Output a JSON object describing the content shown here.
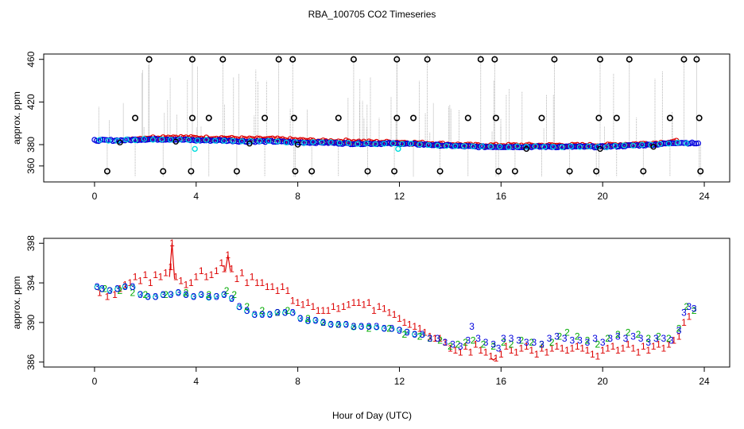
{
  "title": "RBA_100705  CO2 Timeseries",
  "xlabel": "Hour of Day (UTC)",
  "chart_data": [
    {
      "type": "scatter",
      "ylabel": "approx. ppm",
      "xlim": [
        -2,
        25
      ],
      "ylim": [
        345,
        465
      ],
      "xticks": [
        0,
        4,
        8,
        12,
        16,
        20,
        24
      ],
      "yticks": [
        360,
        380,
        420,
        460
      ],
      "colors": {
        "gray": "#a0a0a0",
        "red": "#dd0000",
        "blue": "#0000dd",
        "cyan": "#00dddd",
        "black": "#000000"
      },
      "baseline": [
        [
          0,
          384
        ],
        [
          1,
          384
        ],
        [
          2,
          385
        ],
        [
          3,
          385
        ],
        [
          4,
          384
        ],
        [
          5,
          384
        ],
        [
          6,
          383
        ],
        [
          7,
          383
        ],
        [
          8,
          382
        ],
        [
          9,
          382
        ],
        [
          10,
          381
        ],
        [
          11,
          381
        ],
        [
          12,
          381
        ],
        [
          13,
          380
        ],
        [
          14,
          379
        ],
        [
          15,
          378
        ],
        [
          16,
          378
        ],
        [
          17,
          378
        ],
        [
          18,
          378
        ],
        [
          19,
          378
        ],
        [
          20,
          378
        ],
        [
          21,
          379
        ],
        [
          22,
          380
        ],
        [
          23,
          382
        ],
        [
          23.8,
          381
        ]
      ],
      "red_baseline": [
        [
          1.5,
          385
        ],
        [
          2,
          386
        ],
        [
          3,
          387
        ],
        [
          4,
          386
        ],
        [
          5,
          386
        ],
        [
          6,
          385
        ],
        [
          7,
          385
        ],
        [
          8,
          384
        ],
        [
          9,
          383
        ],
        [
          10,
          383
        ],
        [
          11,
          382
        ],
        [
          12,
          382
        ],
        [
          13,
          381
        ],
        [
          14,
          380
        ],
        [
          15,
          379
        ],
        [
          16,
          379
        ],
        [
          17,
          379
        ],
        [
          18,
          379
        ],
        [
          19,
          379
        ],
        [
          20,
          379
        ],
        [
          21,
          380
        ],
        [
          22,
          381
        ],
        [
          23,
          383
        ]
      ],
      "outliers_high": [
        2.15,
        3.85,
        5.05,
        7.25,
        7.8,
        10.2,
        11.9,
        13.1,
        15.2,
        15.75,
        18.1,
        19.9,
        21.05,
        23.2,
        23.7
      ],
      "outliers_mid": [
        1.6,
        3.85,
        4.5,
        6.7,
        7.85,
        9.6,
        11.9,
        12.55,
        14.7,
        15.8,
        17.6,
        19.85,
        20.55,
        22.65,
        23.8
      ],
      "outliers_low": [
        0.5,
        2.7,
        3.8,
        5.6,
        7.9,
        8.55,
        10.75,
        11.8,
        13.6,
        15.9,
        16.55,
        18.7,
        19.75,
        21.6,
        23.85
      ]
    },
    {
      "type": "scatter",
      "ylabel": "approx. ppm",
      "xlim": [
        -2,
        25
      ],
      "ylim": [
        385.5,
        398.5
      ],
      "xticks": [
        0,
        4,
        8,
        12,
        16,
        20,
        24
      ],
      "yticks": [
        386,
        390,
        394,
        398
      ],
      "series_labels": [
        "1",
        "2",
        "3"
      ],
      "colors": {
        "s1": "#dd0000",
        "s2": "#00aa00",
        "s3": "#0000dd",
        "cyan": "#00bbbb"
      },
      "series_1": [
        [
          0.2,
          393
        ],
        [
          0.5,
          392.6
        ],
        [
          0.8,
          392.8
        ],
        [
          1.0,
          393.4
        ],
        [
          1.2,
          393.8
        ],
        [
          1.4,
          394
        ],
        [
          1.6,
          394.6
        ],
        [
          1.8,
          394.2
        ],
        [
          2.0,
          394.8
        ],
        [
          2.2,
          394
        ],
        [
          2.4,
          394.8
        ],
        [
          2.6,
          394.6
        ],
        [
          2.8,
          395
        ],
        [
          3.0,
          395.6
        ],
        [
          3.05,
          398
        ],
        [
          3.2,
          394.6
        ],
        [
          3.4,
          394.2
        ],
        [
          3.6,
          393.8
        ],
        [
          3.8,
          394
        ],
        [
          4.0,
          394.6
        ],
        [
          4.2,
          395.2
        ],
        [
          4.4,
          394.6
        ],
        [
          4.6,
          394.8
        ],
        [
          4.8,
          395.2
        ],
        [
          5.0,
          396
        ],
        [
          5.1,
          395.4
        ],
        [
          5.25,
          396.8
        ],
        [
          5.4,
          395.4
        ],
        [
          5.6,
          394.4
        ],
        [
          5.8,
          395
        ],
        [
          6.0,
          394
        ],
        [
          6.2,
          394.6
        ],
        [
          6.4,
          394
        ],
        [
          6.6,
          394
        ],
        [
          6.8,
          393.6
        ],
        [
          7.0,
          393.6
        ],
        [
          7.2,
          393.2
        ],
        [
          7.4,
          393.6
        ],
        [
          7.6,
          393.2
        ],
        [
          7.8,
          392.2
        ],
        [
          8.0,
          392
        ],
        [
          8.2,
          391.8
        ],
        [
          8.4,
          392
        ],
        [
          8.6,
          391.6
        ],
        [
          8.8,
          391.2
        ],
        [
          9.0,
          391.2
        ],
        [
          9.2,
          391.2
        ],
        [
          9.4,
          391.6
        ],
        [
          9.6,
          391.4
        ],
        [
          9.8,
          391.6
        ],
        [
          10.0,
          391.8
        ],
        [
          10.2,
          392
        ],
        [
          10.4,
          392
        ],
        [
          10.6,
          391.8
        ],
        [
          10.8,
          392
        ],
        [
          11.0,
          391.2
        ],
        [
          11.2,
          391.6
        ],
        [
          11.4,
          391.4
        ],
        [
          11.6,
          391
        ],
        [
          11.8,
          390.8
        ],
        [
          12.0,
          390.4
        ],
        [
          12.2,
          390
        ],
        [
          12.4,
          389.8
        ],
        [
          12.6,
          389.6
        ],
        [
          12.8,
          389.4
        ],
        [
          13.0,
          389
        ],
        [
          13.2,
          388.6
        ],
        [
          13.4,
          388.4
        ],
        [
          13.6,
          388.4
        ],
        [
          13.8,
          388
        ],
        [
          14.0,
          387.4
        ],
        [
          14.2,
          387.2
        ],
        [
          14.4,
          387
        ],
        [
          14.6,
          387.6
        ],
        [
          14.8,
          387
        ],
        [
          15.0,
          387.8
        ],
        [
          15.2,
          387.2
        ],
        [
          15.4,
          387
        ],
        [
          15.6,
          386.6
        ],
        [
          15.8,
          386.4
        ],
        [
          16.0,
          386.8
        ],
        [
          16.2,
          387.6
        ],
        [
          16.4,
          387.2
        ],
        [
          16.6,
          387
        ],
        [
          16.8,
          387.4
        ],
        [
          17.0,
          387.6
        ],
        [
          17.2,
          387.2
        ],
        [
          17.4,
          386.8
        ],
        [
          17.6,
          387.4
        ],
        [
          17.8,
          387
        ],
        [
          18.0,
          387.4
        ],
        [
          18.2,
          387.6
        ],
        [
          18.4,
          387.4
        ],
        [
          18.6,
          387.2
        ],
        [
          18.8,
          387.4
        ],
        [
          19.0,
          387.6
        ],
        [
          19.2,
          387.4
        ],
        [
          19.4,
          387.2
        ],
        [
          19.6,
          386.8
        ],
        [
          19.8,
          386.6
        ],
        [
          20.0,
          387.2
        ],
        [
          20.2,
          387.4
        ],
        [
          20.4,
          387.6
        ],
        [
          20.6,
          387.2
        ],
        [
          20.8,
          387.4
        ],
        [
          21.0,
          387.8
        ],
        [
          21.2,
          387.4
        ],
        [
          21.4,
          387
        ],
        [
          21.6,
          387.6
        ],
        [
          21.8,
          387.2
        ],
        [
          22.0,
          387.6
        ],
        [
          22.2,
          387.8
        ],
        [
          22.4,
          387.4
        ],
        [
          22.6,
          387.8
        ],
        [
          22.8,
          388.2
        ],
        [
          23.0,
          388.6
        ],
        [
          23.2,
          390
        ],
        [
          23.4,
          390.6
        ]
      ],
      "series_2": [
        [
          0.4,
          393.4
        ],
        [
          1.0,
          393.2
        ],
        [
          1.5,
          393
        ],
        [
          2.0,
          392.8
        ],
        [
          2.8,
          392.8
        ],
        [
          3.6,
          393
        ],
        [
          4.5,
          392.8
        ],
        [
          5.2,
          393.2
        ],
        [
          5.5,
          392.8
        ],
        [
          6.0,
          391.6
        ],
        [
          6.6,
          391.2
        ],
        [
          7.2,
          391
        ],
        [
          7.6,
          391.2
        ],
        [
          8.4,
          390.4
        ],
        [
          9.0,
          390
        ],
        [
          9.6,
          389.8
        ],
        [
          10.2,
          389.6
        ],
        [
          10.8,
          389.4
        ],
        [
          11.6,
          389.4
        ],
        [
          12.2,
          388.8
        ],
        [
          12.8,
          388.6
        ],
        [
          13.2,
          388.4
        ],
        [
          13.6,
          388.2
        ],
        [
          14.0,
          387.6
        ],
        [
          14.3,
          387.8
        ],
        [
          14.6,
          388
        ],
        [
          14.9,
          388.2
        ],
        [
          15.3,
          387.8
        ],
        [
          15.7,
          387.6
        ],
        [
          16.1,
          388
        ],
        [
          16.4,
          387.8
        ],
        [
          16.8,
          388.2
        ],
        [
          17.2,
          388
        ],
        [
          17.6,
          387.8
        ],
        [
          18.0,
          388
        ],
        [
          18.3,
          388.6
        ],
        [
          18.6,
          389
        ],
        [
          19.0,
          388.6
        ],
        [
          19.4,
          388.2
        ],
        [
          19.8,
          387.8
        ],
        [
          20.2,
          388.4
        ],
        [
          20.6,
          388.8
        ],
        [
          21.0,
          389
        ],
        [
          21.4,
          388.8
        ],
        [
          21.8,
          388.4
        ],
        [
          22.2,
          388.6
        ],
        [
          22.6,
          388.4
        ],
        [
          23.0,
          389.4
        ],
        [
          23.3,
          391.6
        ],
        [
          23.6,
          391.2
        ]
      ],
      "series_3": [
        [
          0.1,
          393.6
        ],
        [
          0.3,
          393.4
        ],
        [
          0.6,
          393.2
        ],
        [
          0.9,
          393.4
        ],
        [
          1.2,
          393.6
        ],
        [
          1.5,
          393.6
        ],
        [
          1.8,
          392.8
        ],
        [
          2.1,
          392.6
        ],
        [
          2.4,
          392.6
        ],
        [
          2.7,
          392.8
        ],
        [
          3.0,
          392.8
        ],
        [
          3.3,
          393
        ],
        [
          3.6,
          392.8
        ],
        [
          3.9,
          392.6
        ],
        [
          4.2,
          392.8
        ],
        [
          4.5,
          392.6
        ],
        [
          4.8,
          392.6
        ],
        [
          5.1,
          392.8
        ],
        [
          5.4,
          392.4
        ],
        [
          5.7,
          391.6
        ],
        [
          6.0,
          391.2
        ],
        [
          6.3,
          390.8
        ],
        [
          6.6,
          390.8
        ],
        [
          6.9,
          390.8
        ],
        [
          7.2,
          391
        ],
        [
          7.5,
          391
        ],
        [
          7.8,
          391
        ],
        [
          8.1,
          390.4
        ],
        [
          8.4,
          390.2
        ],
        [
          8.7,
          390.2
        ],
        [
          9.0,
          390
        ],
        [
          9.3,
          389.8
        ],
        [
          9.6,
          389.8
        ],
        [
          9.9,
          389.8
        ],
        [
          10.2,
          389.6
        ],
        [
          10.5,
          389.6
        ],
        [
          10.8,
          389.6
        ],
        [
          11.1,
          389.6
        ],
        [
          11.4,
          389.4
        ],
        [
          11.7,
          389.4
        ],
        [
          12.0,
          389.2
        ],
        [
          12.3,
          389
        ],
        [
          12.6,
          388.8
        ],
        [
          12.9,
          388.8
        ],
        [
          13.2,
          388.4
        ],
        [
          13.5,
          388.4
        ],
        [
          13.8,
          388
        ],
        [
          14.1,
          387.8
        ],
        [
          14.4,
          387.6
        ],
        [
          14.7,
          388.2
        ],
        [
          14.85,
          389.6
        ],
        [
          15.1,
          388.4
        ],
        [
          15.4,
          388
        ],
        [
          15.7,
          387.8
        ],
        [
          15.9,
          387.4
        ],
        [
          16.1,
          388.4
        ],
        [
          16.4,
          388.4
        ],
        [
          16.7,
          388.2
        ],
        [
          17.0,
          388
        ],
        [
          17.3,
          388
        ],
        [
          17.6,
          387.8
        ],
        [
          17.9,
          388.4
        ],
        [
          18.2,
          388.6
        ],
        [
          18.5,
          388.4
        ],
        [
          18.8,
          388.2
        ],
        [
          19.1,
          388.2
        ],
        [
          19.4,
          388
        ],
        [
          19.7,
          388.4
        ],
        [
          20.0,
          388
        ],
        [
          20.3,
          388.4
        ],
        [
          20.6,
          388.6
        ],
        [
          20.9,
          388.4
        ],
        [
          21.2,
          388.6
        ],
        [
          21.5,
          388.4
        ],
        [
          21.8,
          388
        ],
        [
          22.1,
          388.4
        ],
        [
          22.4,
          388.4
        ],
        [
          22.7,
          388.2
        ],
        [
          23.0,
          389.2
        ],
        [
          23.2,
          391
        ],
        [
          23.4,
          391.6
        ],
        [
          23.6,
          391.4
        ]
      ]
    }
  ]
}
